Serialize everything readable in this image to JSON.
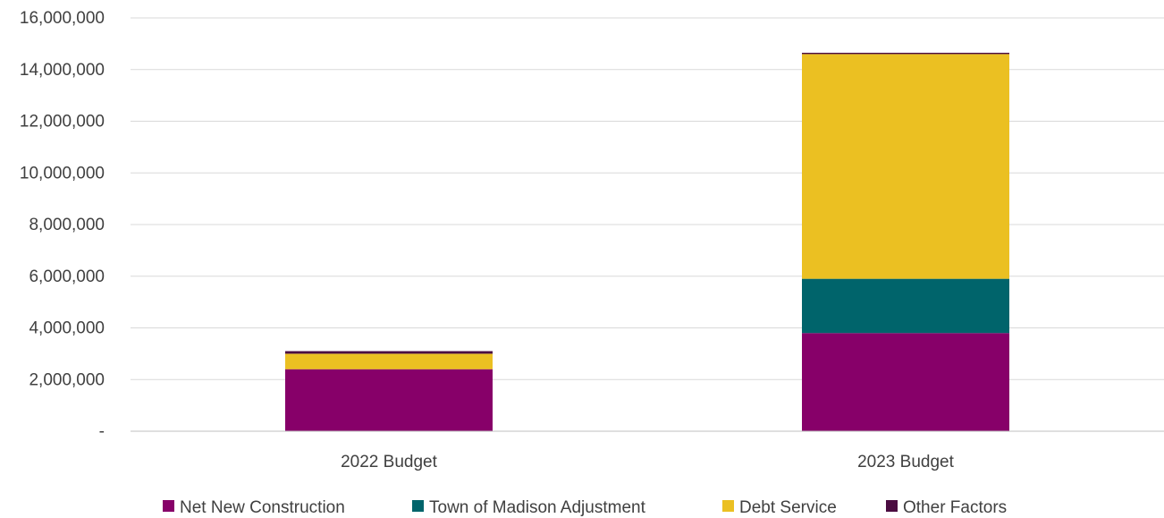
{
  "chart_data": {
    "type": "bar",
    "stacked": true,
    "categories": [
      "2022 Budget",
      "2023 Budget"
    ],
    "series": [
      {
        "name": "Net New Construction",
        "color": "#870069",
        "values": [
          2400000,
          3800000
        ]
      },
      {
        "name": "Town of Madison Adjustment",
        "color": "#00646B",
        "values": [
          0,
          2100000
        ]
      },
      {
        "name": "Debt Service",
        "color": "#EBC022",
        "values": [
          600000,
          8700000
        ]
      },
      {
        "name": "Other Factors",
        "color": "#4B0C41",
        "values": [
          100000,
          50000
        ]
      }
    ],
    "y_ticks": [
      "-",
      "2,000,000",
      "4,000,000",
      "6,000,000",
      "8,000,000",
      "10,000,000",
      "12,000,000",
      "14,000,000",
      "16,000,000"
    ],
    "ylim": [
      0,
      16000000
    ],
    "grid": true,
    "legend_position": "bottom"
  }
}
